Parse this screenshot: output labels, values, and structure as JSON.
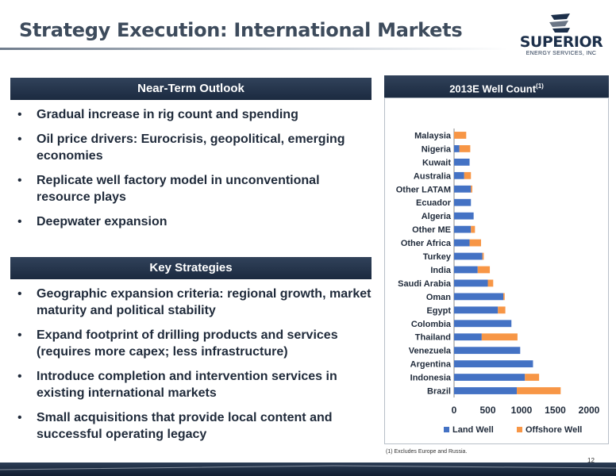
{
  "slide": {
    "title": "Strategy Execution: International Markets",
    "page_number": "12",
    "footnote_text": "(1)    Excludes Europe and Russia."
  },
  "logo": {
    "name": "SUPERIOR",
    "subtitle": "ENERGY SERVICES, INC"
  },
  "outlook": {
    "header": "Near-Term Outlook",
    "bullets": [
      "Gradual increase in rig count and spending",
      "Oil price drivers: Eurocrisis, geopolitical, emerging economies",
      "Replicate well factory model in unconventional resource plays",
      "Deepwater expansion"
    ]
  },
  "strategies": {
    "header": "Key Strategies",
    "bullets": [
      "Geographic expansion criteria: regional growth, market maturity and political stability",
      "Expand footprint of drilling products and services (requires more capex; less infrastructure)",
      "Introduce completion and intervention services in existing international markets",
      "Small acquisitions that provide local content and successful operating legacy"
    ]
  },
  "chart_header": {
    "text": "2013E Well Count",
    "superscript": "(1)"
  },
  "colors": {
    "land": "#4472c4",
    "offshore": "#f79646",
    "header_bg": "#22324a"
  },
  "chart_data": {
    "type": "bar",
    "orientation": "horizontal",
    "stacked": true,
    "title": "2013E Well Count(1)",
    "categories": [
      "Malaysia",
      "Nigeria",
      "Kuwait",
      "Australia",
      "Other LATAM",
      "Ecuador",
      "Algeria",
      "Other ME",
      "Other Africa",
      "Turkey",
      "India",
      "Saudi Arabia",
      "Oman",
      "Egypt",
      "Colombia",
      "Thailand",
      "Venezuela",
      "Argentina",
      "Indonesia",
      "Brazil"
    ],
    "series": [
      {
        "name": "Land Well",
        "color": "#4472c4",
        "values": [
          0,
          80,
          230,
          150,
          250,
          250,
          290,
          250,
          230,
          420,
          350,
          500,
          730,
          650,
          850,
          410,
          980,
          1170,
          1050,
          930
        ]
      },
      {
        "name": "Offshore Well",
        "color": "#f79646",
        "values": [
          180,
          160,
          0,
          100,
          20,
          0,
          0,
          60,
          170,
          20,
          180,
          80,
          20,
          110,
          0,
          530,
          0,
          0,
          210,
          650
        ]
      }
    ],
    "xlim": [
      0,
      2000
    ],
    "xticks": [
      "0",
      "500",
      "1000",
      "1500",
      "2000"
    ],
    "legend": "bottom",
    "grid": false
  }
}
